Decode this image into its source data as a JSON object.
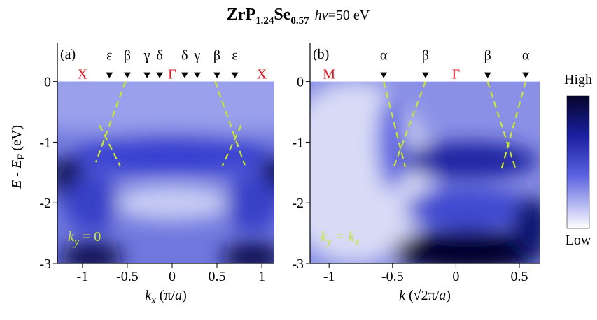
{
  "title": [
    "ZrP",
    "1.24",
    "Se",
    "0.57",
    "hν",
    "=50 eV"
  ],
  "colorbar": {
    "high": "High",
    "low": "Low"
  },
  "chart_data": [
    {
      "type": "heatmap",
      "panel": "(a)",
      "xlabel": [
        "k",
        "x",
        " (π/",
        "a",
        ")"
      ],
      "ylabel": [
        "E",
        " - ",
        "E",
        "F",
        " (eV)"
      ],
      "inset": [
        "k",
        "y",
        " = 0"
      ],
      "xlim": [
        -1.28,
        1.14
      ],
      "xticks": [
        -1,
        -0.5,
        0,
        0.5,
        1
      ],
      "ylim": [
        -3,
        0.63
      ],
      "yticks": [
        0,
        -1,
        -2,
        -3
      ],
      "points": [
        {
          "label": "X",
          "x": -1
        },
        {
          "label": "Γ",
          "x": 0
        },
        {
          "label": "X",
          "x": 1
        }
      ],
      "markers": [
        {
          "label": "ε",
          "x": -0.7
        },
        {
          "label": "β",
          "x": -0.5
        },
        {
          "label": "γ",
          "x": -0.28
        },
        {
          "label": "δ",
          "x": -0.14
        },
        {
          "label": "δ",
          "x": 0.14
        },
        {
          "label": "γ",
          "x": 0.28
        },
        {
          "label": "β",
          "x": 0.5
        },
        {
          "label": "ε",
          "x": 0.7
        }
      ],
      "lines": [
        {
          "x": [
            -0.52,
            -0.85
          ],
          "y": [
            0,
            -1.33
          ]
        },
        {
          "x": [
            -0.81,
            -0.58
          ],
          "y": [
            -0.72,
            -1.39
          ]
        },
        {
          "x": [
            0.48,
            0.81
          ],
          "y": [
            0,
            -1.38
          ]
        },
        {
          "x": [
            0.77,
            0.56
          ],
          "y": [
            -0.72,
            -1.39
          ]
        }
      ],
      "line_color": "#c8e632",
      "point_color": "#e8141e"
    },
    {
      "type": "heatmap",
      "panel": "(b)",
      "xlabel": [
        "k",
        " (√2π/",
        "a",
        ")"
      ],
      "inset": [
        "k",
        "y",
        " = k",
        "x"
      ],
      "xlim": [
        -1.15,
        0.66
      ],
      "xticks": [
        -1,
        -0.5,
        0,
        0.5
      ],
      "ylim": [
        -3,
        0.63
      ],
      "yticks": [
        0,
        -1,
        -2,
        -3
      ],
      "points": [
        {
          "label": "M",
          "x": -1
        },
        {
          "label": "Γ",
          "x": 0
        }
      ],
      "markers": [
        {
          "label": "α",
          "x": -0.57
        },
        {
          "label": "β",
          "x": -0.24
        },
        {
          "label": "β",
          "x": 0.25
        },
        {
          "label": "α",
          "x": 0.55
        }
      ],
      "lines": [
        {
          "x": [
            -0.57,
            -0.4
          ],
          "y": [
            0,
            -1.41
          ]
        },
        {
          "x": [
            -0.24,
            -0.49
          ],
          "y": [
            0,
            -1.41
          ]
        },
        {
          "x": [
            0.25,
            0.47
          ],
          "y": [
            0,
            -1.44
          ]
        },
        {
          "x": [
            0.55,
            0.36
          ],
          "y": [
            0,
            -1.44
          ]
        }
      ],
      "line_color": "#c8e632",
      "point_color": "#e8141e"
    }
  ]
}
